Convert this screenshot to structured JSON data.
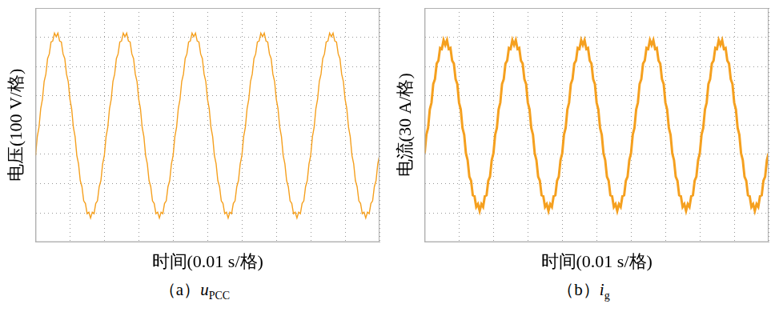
{
  "chart_data": [
    {
      "type": "line",
      "title": {
        "label": "（a）",
        "symbol": "u",
        "subscript": "PCC"
      },
      "xlabel": "时间(0.01 s/格)",
      "ylabel": "电压(100 V/格)",
      "color": "#f5a01f",
      "grid": true,
      "tick_labels": false,
      "xlim": [
        0,
        0.1
      ],
      "xticks": [
        0,
        0.01,
        0.02,
        0.03,
        0.04,
        0.05,
        0.06,
        0.07,
        0.08,
        0.09,
        0.1
      ],
      "ylim": [
        -400,
        400
      ],
      "yticks": [
        -400,
        -300,
        -200,
        -100,
        0,
        100,
        200,
        300,
        400
      ],
      "x": [
        0,
        0.0005,
        0.001,
        0.0015,
        0.002,
        0.0025,
        0.003,
        0.0035,
        0.004,
        0.0045,
        0.005,
        0.0055,
        0.006,
        0.0065,
        0.007,
        0.0075,
        0.008,
        0.0085,
        0.009,
        0.0095,
        0.01,
        0.0105,
        0.011,
        0.0115,
        0.012,
        0.0125,
        0.013,
        0.0135,
        0.014,
        0.0145,
        0.015,
        0.0155,
        0.016,
        0.0165,
        0.017,
        0.0175,
        0.018,
        0.0185,
        0.019,
        0.0195,
        0.02,
        0.0205,
        0.021,
        0.0215,
        0.022,
        0.0225,
        0.023,
        0.0235,
        0.024,
        0.0245,
        0.025,
        0.0255,
        0.026,
        0.0265,
        0.027,
        0.0275,
        0.028,
        0.0285,
        0.029,
        0.0295,
        0.03,
        0.0305,
        0.031,
        0.0315,
        0.032,
        0.0325,
        0.033,
        0.0335,
        0.034,
        0.0345,
        0.035,
        0.0355,
        0.036,
        0.0365,
        0.037,
        0.0375,
        0.038,
        0.0385,
        0.039,
        0.0395,
        0.04,
        0.0405,
        0.041,
        0.0415,
        0.042,
        0.0425,
        0.043,
        0.0435,
        0.044,
        0.0445,
        0.045,
        0.0455,
        0.046,
        0.0465,
        0.047,
        0.0475,
        0.048,
        0.0485,
        0.049,
        0.0495,
        0.05,
        0.0505,
        0.051,
        0.0515,
        0.052,
        0.0525,
        0.053,
        0.0535,
        0.054,
        0.0545,
        0.055,
        0.0555,
        0.056,
        0.0565,
        0.057,
        0.0575,
        0.058,
        0.0585,
        0.059,
        0.0595,
        0.06,
        0.0605,
        0.061,
        0.0615,
        0.062,
        0.0625,
        0.063,
        0.0635,
        0.064,
        0.0645,
        0.065,
        0.0655,
        0.066,
        0.0665,
        0.067,
        0.0675,
        0.068,
        0.0685,
        0.069,
        0.0695,
        0.07,
        0.0705,
        0.071,
        0.0715,
        0.072,
        0.0725,
        0.073,
        0.0735,
        0.074,
        0.0745,
        0.075,
        0.0755,
        0.076,
        0.0765,
        0.077,
        0.0775,
        0.078,
        0.0785,
        0.079,
        0.0795,
        0.08,
        0.0805,
        0.081,
        0.0815,
        0.082,
        0.0825,
        0.083,
        0.0835,
        0.084,
        0.0845,
        0.085,
        0.0855,
        0.086,
        0.0865,
        0.087,
        0.0875,
        0.088,
        0.0885,
        0.089,
        0.0895,
        0.09,
        0.0905,
        0.091,
        0.0915,
        0.092,
        0.0925,
        0.093,
        0.0935,
        0.094,
        0.0945,
        0.095,
        0.0955,
        0.096,
        0.0965,
        0.097,
        0.0975,
        0.098,
        0.0985,
        0.099,
        0.0995,
        0.1
      ],
      "values": [
        -104,
        -40,
        -8,
        56,
        88,
        149,
        174,
        227,
        243,
        284,
        287,
        314,
        302,
        314,
        287,
        284,
        243,
        227,
        174,
        149,
        88,
        56,
        -8,
        -40,
        -104,
        -133,
        -190,
        -211,
        -259,
        -268,
        -303,
        -298,
        -318,
        -298,
        -303,
        -268,
        -259,
        -211,
        -190,
        -133,
        -104,
        -40,
        -8,
        56,
        88,
        149,
        174,
        227,
        243,
        284,
        287,
        314,
        302,
        314,
        287,
        284,
        243,
        227,
        174,
        149,
        88,
        56,
        -8,
        -40,
        -104,
        -133,
        -190,
        -211,
        -259,
        -268,
        -303,
        -298,
        -318,
        -298,
        -303,
        -268,
        -259,
        -211,
        -190,
        -133,
        -104,
        -40,
        -8,
        56,
        88,
        149,
        174,
        227,
        243,
        284,
        287,
        314,
        302,
        314,
        287,
        284,
        243,
        227,
        174,
        149,
        88,
        56,
        -8,
        -40,
        -104,
        -133,
        -190,
        -211,
        -259,
        -268,
        -303,
        -298,
        -318,
        -298,
        -303,
        -268,
        -259,
        -211,
        -190,
        -133,
        -104,
        -40,
        -8,
        56,
        88,
        149,
        174,
        227,
        243,
        284,
        287,
        314,
        302,
        314,
        287,
        284,
        243,
        227,
        174,
        149,
        88,
        56,
        -8,
        -40,
        -104,
        -133,
        -190,
        -211,
        -259,
        -268,
        -303,
        -298,
        -318,
        -298,
        -303,
        -268,
        -259,
        -211,
        -190,
        -133,
        -104,
        -40,
        -8,
        56,
        88,
        149,
        174,
        227,
        243,
        284,
        287,
        314,
        302,
        314,
        287,
        284,
        243,
        227,
        174,
        149,
        88,
        56,
        -8,
        -40,
        -104,
        -133,
        -190,
        -211,
        -259,
        -268,
        -303,
        -298,
        -318,
        -298,
        -303,
        -268,
        -259,
        -211,
        -190,
        -133,
        -104
      ]
    },
    {
      "type": "line",
      "title": {
        "label": "（b）",
        "symbol": "i",
        "subscript": "g"
      },
      "xlabel": "时间(0.01 s/格)",
      "ylabel": "电流(30 A/格)",
      "color": "#f5a01f",
      "grid": true,
      "tick_labels": false,
      "xlim": [
        0,
        0.1
      ],
      "xticks": [
        0,
        0.01,
        0.02,
        0.03,
        0.04,
        0.05,
        0.06,
        0.07,
        0.08,
        0.09,
        0.1
      ],
      "ylim": [
        -120,
        120
      ],
      "yticks": [
        -120,
        -90,
        -60,
        -30,
        0,
        30,
        60,
        90,
        120
      ],
      "x": [
        0,
        0.0005,
        0.001,
        0.0015,
        0.002,
        0.0025,
        0.003,
        0.0035,
        0.004,
        0.0045,
        0.005,
        0.0055,
        0.006,
        0.0065,
        0.007,
        0.0075,
        0.008,
        0.0085,
        0.009,
        0.0095,
        0.01,
        0.0105,
        0.011,
        0.0115,
        0.012,
        0.0125,
        0.013,
        0.0135,
        0.014,
        0.0145,
        0.015,
        0.0155,
        0.016,
        0.0165,
        0.017,
        0.0175,
        0.018,
        0.0185,
        0.019,
        0.0195,
        0.02,
        0.0205,
        0.021,
        0.0215,
        0.022,
        0.0225,
        0.023,
        0.0235,
        0.024,
        0.0245,
        0.025,
        0.0255,
        0.026,
        0.0265,
        0.027,
        0.0275,
        0.028,
        0.0285,
        0.029,
        0.0295,
        0.03,
        0.0305,
        0.031,
        0.0315,
        0.032,
        0.0325,
        0.033,
        0.0335,
        0.034,
        0.0345,
        0.035,
        0.0355,
        0.036,
        0.0365,
        0.037,
        0.0375,
        0.038,
        0.0385,
        0.039,
        0.0395,
        0.04,
        0.0405,
        0.041,
        0.0415,
        0.042,
        0.0425,
        0.043,
        0.0435,
        0.044,
        0.0445,
        0.045,
        0.0455,
        0.046,
        0.0465,
        0.047,
        0.0475,
        0.048,
        0.0485,
        0.049,
        0.0495,
        0.05,
        0.0505,
        0.051,
        0.0515,
        0.052,
        0.0525,
        0.053,
        0.0535,
        0.054,
        0.0545,
        0.055,
        0.0555,
        0.056,
        0.0565,
        0.057,
        0.0575,
        0.058,
        0.0585,
        0.059,
        0.0595,
        0.06,
        0.0605,
        0.061,
        0.0615,
        0.062,
        0.0625,
        0.063,
        0.0635,
        0.064,
        0.0645,
        0.065,
        0.0655,
        0.066,
        0.0665,
        0.067,
        0.0675,
        0.068,
        0.0685,
        0.069,
        0.0695,
        0.07,
        0.0705,
        0.071,
        0.0715,
        0.072,
        0.0725,
        0.073,
        0.0735,
        0.074,
        0.0745,
        0.075,
        0.0755,
        0.076,
        0.0765,
        0.077,
        0.0775,
        0.078,
        0.0785,
        0.079,
        0.0795,
        0.08,
        0.0805,
        0.081,
        0.0815,
        0.082,
        0.0825,
        0.083,
        0.0835,
        0.084,
        0.0845,
        0.085,
        0.0855,
        0.086,
        0.0865,
        0.087,
        0.0875,
        0.088,
        0.0885,
        0.089,
        0.0895,
        0.09,
        0.0905,
        0.091,
        0.0915,
        0.092,
        0.0925,
        0.093,
        0.0935,
        0.094,
        0.0945,
        0.095,
        0.0955,
        0.096,
        0.0965,
        0.097,
        0.0975,
        0.098,
        0.0985,
        0.099,
        0.0995,
        0.1
      ],
      "values": [
        -29,
        -10,
        -3,
        16,
        23,
        42,
        47,
        63,
        66,
        79,
        78,
        87,
        82,
        87,
        78,
        79,
        66,
        63,
        47,
        42,
        23,
        16,
        -3,
        -10,
        -29,
        -36,
        -53,
        -57,
        -72,
        -73,
        -84,
        -81,
        -88,
        -81,
        -84,
        -73,
        -72,
        -57,
        -53,
        -36,
        -29,
        -10,
        -3,
        16,
        23,
        42,
        47,
        63,
        66,
        79,
        78,
        87,
        82,
        87,
        78,
        79,
        66,
        63,
        47,
        42,
        23,
        16,
        -3,
        -10,
        -29,
        -36,
        -53,
        -57,
        -72,
        -73,
        -84,
        -81,
        -88,
        -81,
        -84,
        -73,
        -72,
        -57,
        -53,
        -36,
        -29,
        -10,
        -3,
        16,
        23,
        42,
        47,
        63,
        66,
        79,
        78,
        87,
        82,
        87,
        78,
        79,
        66,
        63,
        47,
        42,
        23,
        16,
        -3,
        -10,
        -29,
        -36,
        -53,
        -57,
        -72,
        -73,
        -84,
        -81,
        -88,
        -81,
        -84,
        -73,
        -72,
        -57,
        -53,
        -36,
        -29,
        -10,
        -3,
        16,
        23,
        42,
        47,
        63,
        66,
        79,
        78,
        87,
        82,
        87,
        78,
        79,
        66,
        63,
        47,
        42,
        23,
        16,
        -3,
        -10,
        -29,
        -36,
        -53,
        -57,
        -72,
        -73,
        -84,
        -81,
        -88,
        -81,
        -84,
        -73,
        -72,
        -57,
        -53,
        -36,
        -29,
        -10,
        -3,
        16,
        23,
        42,
        47,
        63,
        66,
        79,
        78,
        87,
        82,
        87,
        78,
        79,
        66,
        63,
        47,
        42,
        23,
        16,
        -3,
        -10,
        -29,
        -36,
        -53,
        -57,
        -72,
        -73,
        -84,
        -81,
        -88,
        -81,
        -84,
        -73,
        -72,
        -57,
        -53,
        -36,
        -29
      ]
    }
  ]
}
